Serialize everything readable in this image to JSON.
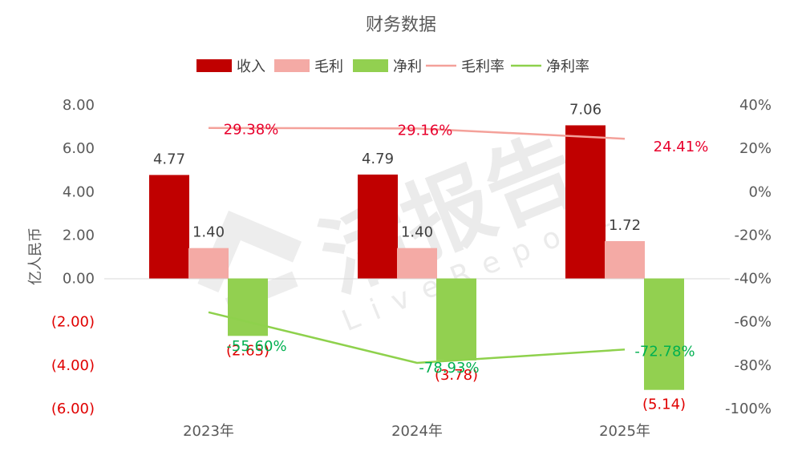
{
  "chart_data": {
    "type": "bar",
    "title": "财务数据",
    "categories": [
      "2023年",
      "2024年",
      "2025年"
    ],
    "ylabel": "亿人民币",
    "ylim": [
      -6,
      8
    ],
    "y_ticks": [
      "8.00",
      "6.00",
      "4.00",
      "2.00",
      "0.00",
      "(2.00)",
      "(4.00)",
      "(6.00)"
    ],
    "y_tick_values": [
      8,
      6,
      4,
      2,
      0,
      -2,
      -4,
      -6
    ],
    "y2lim": [
      -100,
      40
    ],
    "y2_ticks": [
      "40%",
      "20%",
      "0%",
      "-20%",
      "-40%",
      "-60%",
      "-80%",
      "-100%"
    ],
    "y2_tick_values": [
      40,
      20,
      0,
      -20,
      -40,
      -60,
      -80,
      -100
    ],
    "legend_position": "top",
    "grid": false,
    "series": [
      {
        "name": "收入",
        "kind": "bar",
        "color": "#c00000",
        "values": [
          4.77,
          4.79,
          7.06
        ],
        "labels": [
          "4.77",
          "4.79",
          "7.06"
        ]
      },
      {
        "name": "毛利",
        "kind": "bar",
        "color": "#f4aaa5",
        "values": [
          1.4,
          1.4,
          1.72
        ],
        "labels": [
          "1.40",
          "1.40",
          "1.72"
        ]
      },
      {
        "name": "净利",
        "kind": "bar",
        "color": "#92d050",
        "values": [
          -2.65,
          -3.78,
          -5.14
        ],
        "labels": [
          "(2.65)",
          "(3.78)",
          "(5.14)"
        ]
      },
      {
        "name": "毛利率",
        "kind": "line",
        "axis": "right",
        "color": "#f4a19a",
        "values": [
          29.38,
          29.16,
          24.41
        ],
        "labels": [
          "29.38%",
          "29.16%",
          "24.41%"
        ]
      },
      {
        "name": "净利率",
        "kind": "line",
        "axis": "right",
        "color": "#8ed14c",
        "values": [
          -55.6,
          -78.93,
          -72.78
        ],
        "labels": [
          "-55.60%",
          "-78.93%",
          "-72.78%"
        ]
      }
    ]
  },
  "watermark": {
    "main": "活报告",
    "sub": "LiveReport",
    "color": "#e9e9e9"
  }
}
